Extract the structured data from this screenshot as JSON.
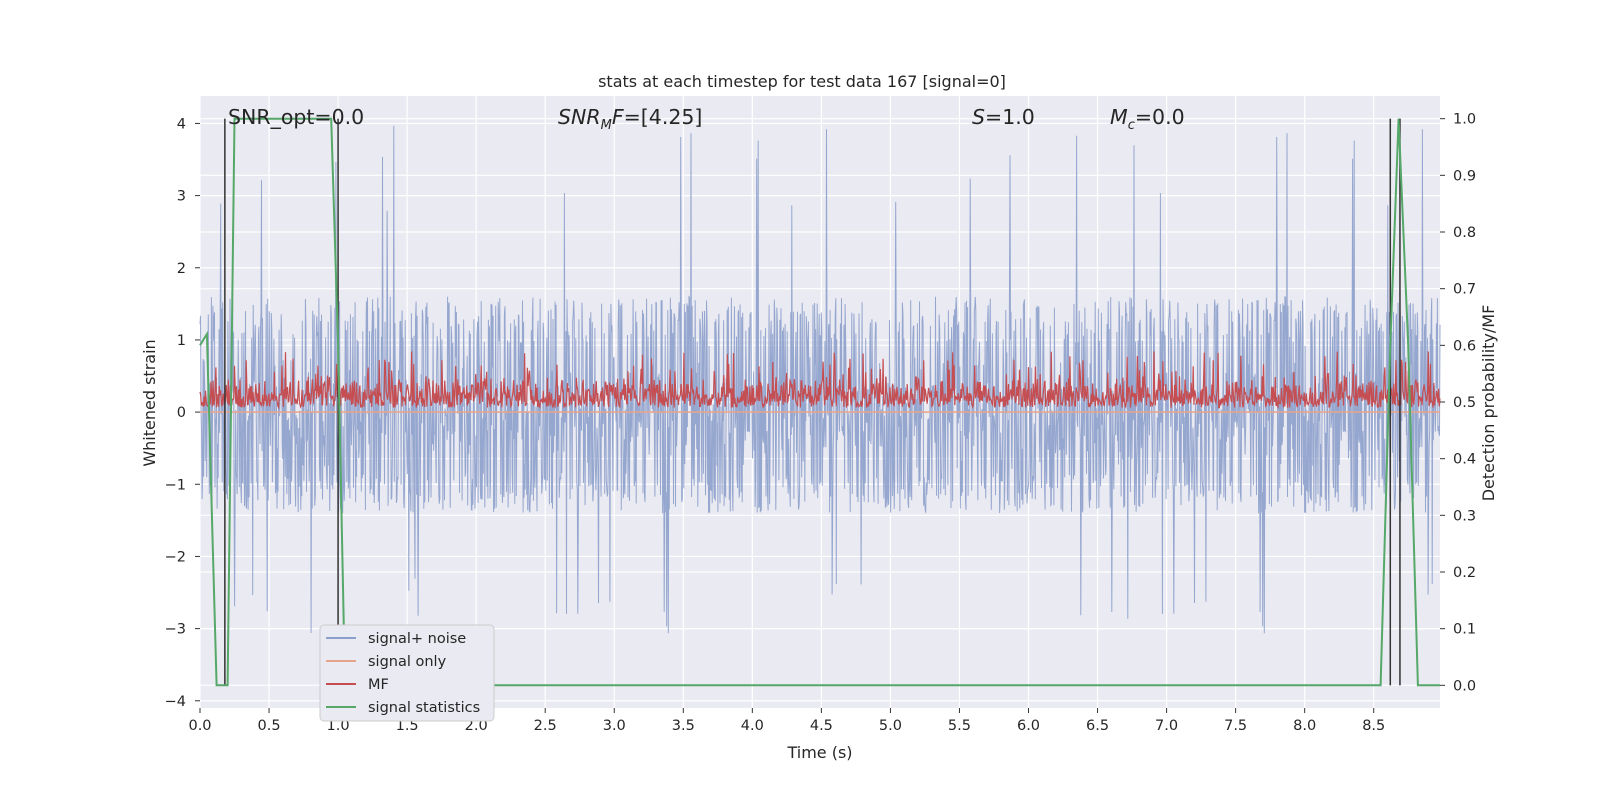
{
  "chart_data": {
    "type": "line",
    "title": "stats at each timestep for test data 167 [signal=0]",
    "xlabel": "Time (s)",
    "ylabel": "Whitened strain",
    "ylabel_right": "Detection probability/MF",
    "xlim": [
      0.0,
      8.98
    ],
    "ylim": [
      -4.1,
      4.38
    ],
    "ylim_right": [
      -0.04,
      1.04
    ],
    "x_ticks": [
      "0.0",
      "0.5",
      "1.0",
      "1.5",
      "2.0",
      "2.5",
      "3.0",
      "3.5",
      "4.0",
      "4.5",
      "5.0",
      "5.5",
      "6.0",
      "6.5",
      "7.0",
      "7.5",
      "8.0",
      "8.5"
    ],
    "y_ticks": [
      "−4",
      "−3",
      "−2",
      "−1",
      "0",
      "1",
      "2",
      "3",
      "4"
    ],
    "y_ticks_right": [
      "0.0",
      "0.1",
      "0.2",
      "0.3",
      "0.4",
      "0.5",
      "0.6",
      "0.7",
      "0.8",
      "0.9",
      "1.0"
    ],
    "grid": true,
    "legend_position": "lower-left",
    "annotations": {
      "snr_opt": "SNR_opt=0.0",
      "snr_mf": "SNR_MF=[4.25]",
      "s": "S=1.0",
      "mc": "M_c=0.0"
    },
    "series": [
      {
        "name": "signal+ noise",
        "axis": "left",
        "color": "#8da0cb",
        "description_values": {
          "approx_range": [
            -3.2,
            4.0
          ],
          "typical_envelope": [
            -1.4,
            1.6
          ]
        }
      },
      {
        "name": "signal only",
        "axis": "left",
        "color": "#e8a48a",
        "x": [
          0.0,
          8.98
        ],
        "y": [
          0.0,
          0.0
        ]
      },
      {
        "name": "MF",
        "axis": "right",
        "color": "#c44e52",
        "description_values": {
          "approx_range": [
            0.49,
            0.59
          ]
        }
      },
      {
        "name": "signal statistics",
        "axis": "right",
        "color": "#55a868",
        "x": [
          0.0,
          0.05,
          0.12,
          0.2,
          0.25,
          0.3,
          0.6,
          0.95,
          1.0,
          1.05,
          1.5,
          4.0,
          7.0,
          8.5,
          8.55,
          8.62,
          8.68,
          8.75,
          8.82,
          8.98
        ],
        "y": [
          0.6,
          0.62,
          0.0,
          0.0,
          1.0,
          1.0,
          1.0,
          1.0,
          0.6,
          0.0,
          0.0,
          0.0,
          0.0,
          0.0,
          0.0,
          0.6,
          1.0,
          0.6,
          0.0,
          0.0
        ]
      }
    ],
    "vertical_lines": {
      "color": "#333333",
      "x": [
        0.18,
        1.0,
        8.62,
        8.69
      ]
    }
  }
}
